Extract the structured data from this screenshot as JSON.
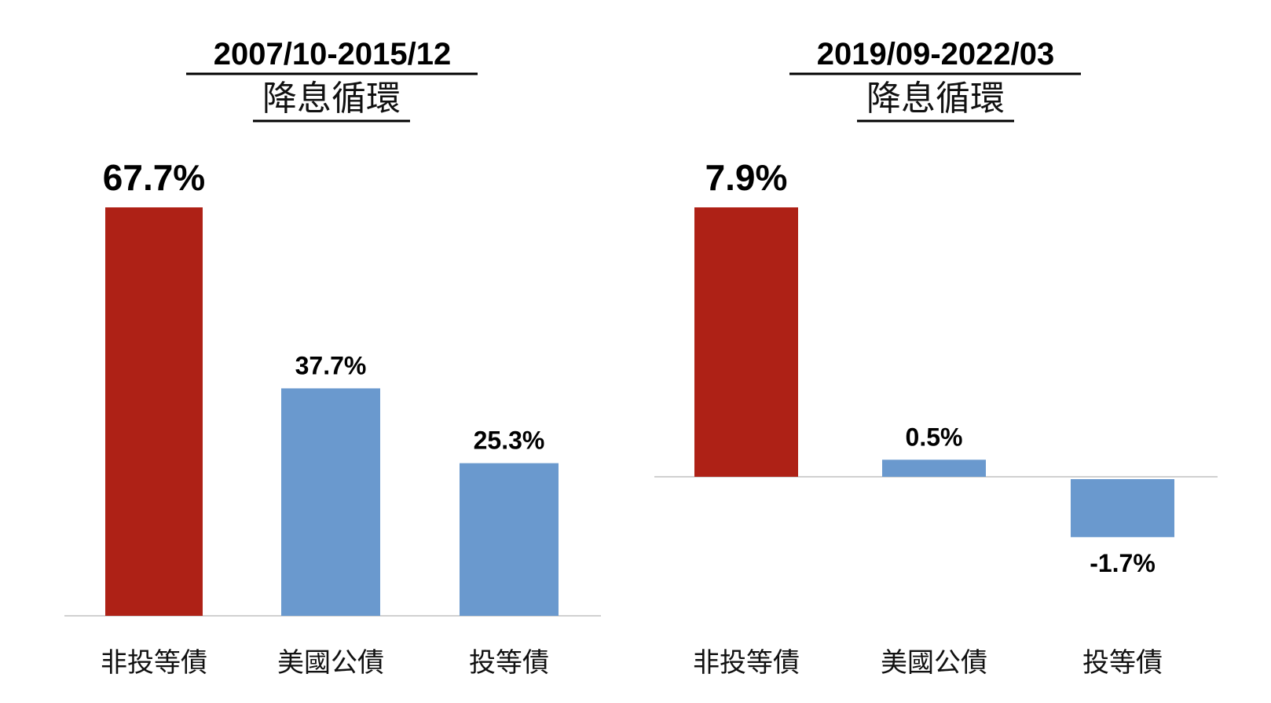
{
  "chart_data": [
    {
      "type": "bar",
      "title": "2007/10-2015/12",
      "subtitle": "降息循環",
      "categories": [
        "非投等債",
        "美國公債",
        "投等債"
      ],
      "values": [
        67.7,
        37.7,
        25.3
      ],
      "value_labels": [
        "67.7%",
        "37.7%",
        "25.3%"
      ],
      "colors": [
        "#ae2116",
        "#6a99ce",
        "#6a99ce"
      ],
      "highlight_color": "#c0392b",
      "ylim": [
        0,
        67.7
      ]
    },
    {
      "type": "bar",
      "title": "2019/09-2022/03",
      "subtitle": "降息循環",
      "categories": [
        "非投等債",
        "美國公債",
        "投等債"
      ],
      "values": [
        7.9,
        0.5,
        -1.7
      ],
      "value_labels": [
        "7.9%",
        "0.5%",
        "-1.7%"
      ],
      "colors": [
        "#ae2116",
        "#6a99ce",
        "#6a99ce"
      ],
      "highlight_color": "#c0392b",
      "ylim": [
        -1.7,
        7.9
      ]
    }
  ]
}
